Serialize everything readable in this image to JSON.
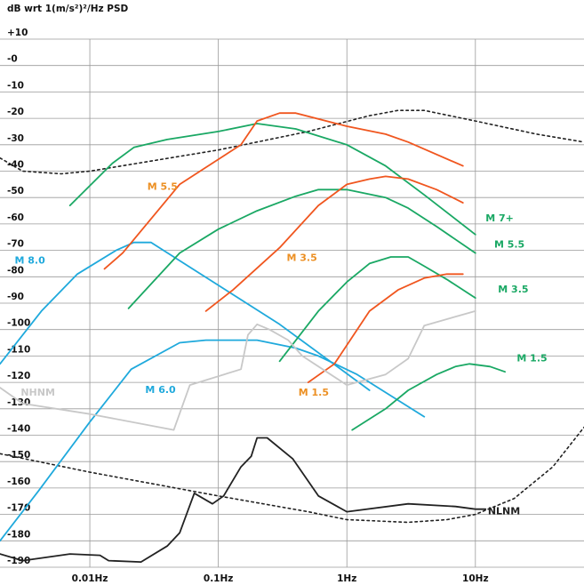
{
  "chart_data": {
    "type": "line",
    "ylabel": "dB wrt 1(m/s²)²/Hz PSD",
    "ylim": [
      -190,
      10
    ],
    "xlim": [
      0.002,
      70
    ],
    "xscale": "log",
    "grid": true,
    "y_ticks": [
      "+10",
      "-0",
      "-10",
      "-20",
      "-30",
      "-40",
      "-50",
      "-60",
      "-70",
      "-80",
      "-90",
      "-100",
      "-110",
      "-120",
      "-130",
      "-140",
      "-150",
      "-160",
      "-170",
      "-180",
      "-190"
    ],
    "x_ticks": [
      {
        "value": 0.01,
        "label": "0.01Hz"
      },
      {
        "value": 0.1,
        "label": "0.1Hz"
      },
      {
        "value": 1,
        "label": "1Hz"
      },
      {
        "value": 10,
        "label": "10Hz"
      }
    ],
    "colors": {
      "green": "#1aa864",
      "orange": "#f0561f",
      "blue": "#1fa9dc",
      "gray": "#c8c8c8",
      "black": "#222222",
      "orange_label": "#ec9024"
    },
    "series": [
      {
        "name": "M 8.0",
        "color": "blue",
        "label_color": "blue",
        "label_at": [
          0.0026,
          -75
        ],
        "points": [
          [
            0.002,
            -113
          ],
          [
            0.0042,
            -93
          ],
          [
            0.008,
            -79
          ],
          [
            0.016,
            -70
          ],
          [
            0.022,
            -67
          ],
          [
            0.03,
            -67
          ],
          [
            0.3,
            -98
          ],
          [
            1.5,
            -123
          ]
        ]
      },
      {
        "name": "M 6.0",
        "color": "blue",
        "label_color": "blue",
        "label_at": [
          0.027,
          -124
        ],
        "points": [
          [
            0.002,
            -180
          ],
          [
            0.004,
            -161
          ],
          [
            0.01,
            -135
          ],
          [
            0.021,
            -115
          ],
          [
            0.05,
            -105
          ],
          [
            0.08,
            -104
          ],
          [
            0.2,
            -104
          ],
          [
            0.4,
            -107
          ],
          [
            0.6,
            -110
          ],
          [
            1.2,
            -117
          ],
          [
            4,
            -133
          ]
        ]
      },
      {
        "name": "M 7+",
        "color": "green",
        "label_color": "green",
        "label_at": [
          12,
          -59
        ],
        "points": [
          [
            0.007,
            -53
          ],
          [
            0.015,
            -37
          ],
          [
            0.022,
            -31
          ],
          [
            0.04,
            -28
          ],
          [
            0.1,
            -25
          ],
          [
            0.2,
            -22
          ],
          [
            0.4,
            -24
          ],
          [
            1,
            -30
          ],
          [
            2,
            -38
          ],
          [
            4,
            -49
          ],
          [
            10,
            -64
          ]
        ]
      },
      {
        "name": "M 5.5",
        "color": "green",
        "label_color": "green",
        "label_at": [
          14,
          -69
        ],
        "points": [
          [
            0.02,
            -92
          ],
          [
            0.05,
            -71
          ],
          [
            0.1,
            -62
          ],
          [
            0.2,
            -55
          ],
          [
            0.4,
            -49.5
          ],
          [
            0.6,
            -47
          ],
          [
            1,
            -47
          ],
          [
            2,
            -50
          ],
          [
            3,
            -54
          ],
          [
            5,
            -61
          ],
          [
            10,
            -71
          ]
        ]
      },
      {
        "name": "M 3.5",
        "color": "green",
        "label_color": "green",
        "label_at": [
          15,
          -86
        ],
        "points": [
          [
            0.3,
            -112
          ],
          [
            0.6,
            -93
          ],
          [
            1,
            -82
          ],
          [
            1.5,
            -75
          ],
          [
            2.2,
            -72.5
          ],
          [
            3,
            -72.5
          ],
          [
            4,
            -76
          ],
          [
            6,
            -81
          ],
          [
            10,
            -88
          ]
        ]
      },
      {
        "name": "M 1.5",
        "color": "green",
        "label_color": "green",
        "label_at": [
          21,
          -112
        ],
        "points": [
          [
            1.1,
            -138
          ],
          [
            2,
            -130
          ],
          [
            3,
            -123
          ],
          [
            5,
            -117
          ],
          [
            7,
            -114
          ],
          [
            9,
            -113
          ],
          [
            13,
            -114
          ],
          [
            17,
            -116
          ]
        ]
      },
      {
        "name": "M 5.5",
        "color": "orange",
        "label_color": "orange_label",
        "label_at": [
          0.028,
          -47
        ],
        "points": [
          [
            0.013,
            -77
          ],
          [
            0.018,
            -71
          ],
          [
            0.05,
            -45
          ],
          [
            0.15,
            -30
          ],
          [
            0.2,
            -21
          ],
          [
            0.3,
            -18
          ],
          [
            0.4,
            -18
          ],
          [
            1,
            -23
          ],
          [
            2,
            -26
          ],
          [
            3,
            -29
          ],
          [
            8,
            -38
          ]
        ]
      },
      {
        "name": "M 3.5",
        "color": "orange",
        "label_color": "orange_label",
        "label_at": [
          0.34,
          -74
        ],
        "points": [
          [
            0.08,
            -93
          ],
          [
            0.13,
            -85
          ],
          [
            0.3,
            -69
          ],
          [
            0.6,
            -53
          ],
          [
            1,
            -45
          ],
          [
            1.5,
            -43
          ],
          [
            2,
            -42
          ],
          [
            3,
            -43
          ],
          [
            5,
            -47
          ],
          [
            8,
            -52
          ]
        ]
      },
      {
        "name": "M 1.5",
        "color": "orange",
        "label_color": "orange_label",
        "label_at": [
          0.42,
          -125
        ],
        "points": [
          [
            0.5,
            -120
          ],
          [
            0.8,
            -113
          ],
          [
            1.5,
            -93
          ],
          [
            2.5,
            -85
          ],
          [
            4,
            -80.5
          ],
          [
            6,
            -79
          ],
          [
            8,
            -79
          ]
        ]
      },
      {
        "name": "NHNM",
        "color": "gray",
        "label_color": "gray",
        "label_at": [
          0.0029,
          -125
        ],
        "points": [
          [
            0.002,
            -122
          ],
          [
            0.003,
            -128
          ],
          [
            0.01,
            -132
          ],
          [
            0.045,
            -138
          ],
          [
            0.06,
            -121
          ],
          [
            0.15,
            -115
          ],
          [
            0.17,
            -102
          ],
          [
            0.2,
            -98
          ],
          [
            0.25,
            -100
          ],
          [
            0.35,
            -104
          ],
          [
            0.45,
            -110
          ],
          [
            1,
            -121
          ],
          [
            2,
            -117
          ],
          [
            3,
            -111
          ],
          [
            4,
            -98.5
          ],
          [
            10,
            -93
          ]
        ]
      },
      {
        "name": "NLNM",
        "color": "black",
        "label_color": "black",
        "label_at": [
          12.5,
          -170
        ],
        "points": [
          [
            0.002,
            -185
          ],
          [
            0.003,
            -187.5
          ],
          [
            0.007,
            -185
          ],
          [
            0.012,
            -185.5
          ],
          [
            0.014,
            -187.5
          ],
          [
            0.025,
            -188
          ],
          [
            0.04,
            -182
          ],
          [
            0.05,
            -177
          ],
          [
            0.065,
            -162
          ],
          [
            0.09,
            -166
          ],
          [
            0.11,
            -163
          ],
          [
            0.15,
            -152
          ],
          [
            0.18,
            -148
          ],
          [
            0.2,
            -141
          ],
          [
            0.24,
            -141
          ],
          [
            0.38,
            -149
          ],
          [
            0.6,
            -163
          ],
          [
            1,
            -169
          ],
          [
            3,
            -166
          ],
          [
            7,
            -167
          ],
          [
            10,
            -168
          ],
          [
            12,
            -168
          ]
        ]
      }
    ],
    "dotted_series": [
      {
        "points": [
          [
            0.002,
            -35
          ],
          [
            0.003,
            -40
          ],
          [
            0.006,
            -41
          ],
          [
            0.01,
            -40
          ],
          [
            0.1,
            -32
          ],
          [
            0.5,
            -25
          ],
          [
            1.5,
            -19
          ],
          [
            2.5,
            -17
          ],
          [
            4,
            -17
          ],
          [
            10,
            -21
          ],
          [
            30,
            -26
          ],
          [
            70,
            -29
          ]
        ]
      },
      {
        "points": [
          [
            0.002,
            -147
          ],
          [
            0.01,
            -154
          ],
          [
            0.1,
            -163
          ],
          [
            0.5,
            -169
          ],
          [
            1,
            -172
          ],
          [
            3,
            -173
          ],
          [
            6,
            -172
          ],
          [
            10,
            -170
          ],
          [
            20,
            -164
          ],
          [
            40,
            -152
          ],
          [
            70,
            -137
          ]
        ]
      }
    ]
  }
}
